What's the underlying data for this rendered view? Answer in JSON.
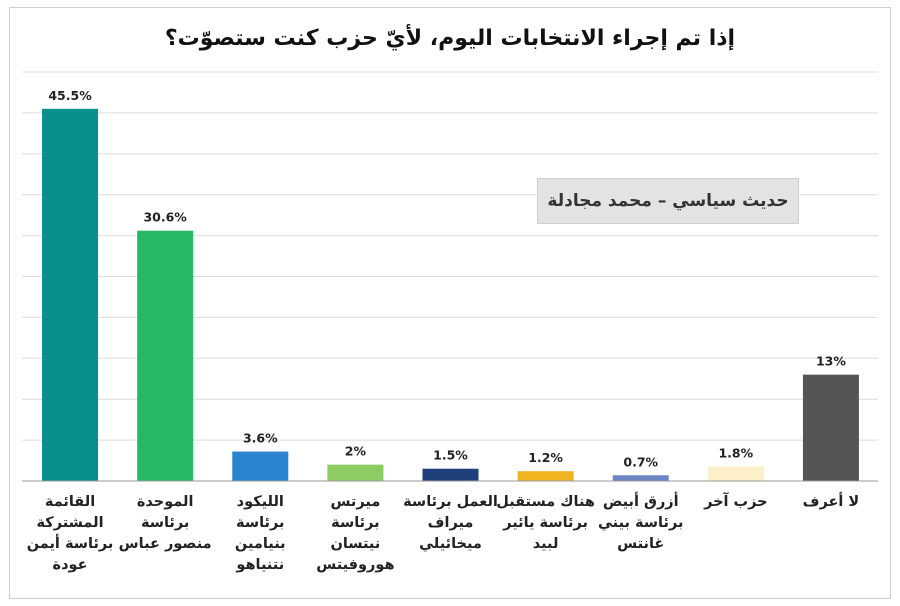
{
  "chart_data": {
    "type": "bar",
    "title": "إذا تم إجراء الانتخابات اليوم، لأيّ حزب كنت ستصوّت؟",
    "annotation": "حديث سياسي – محمد مجادلة",
    "categories": [
      "القائمة المشتركة برئاسة أيمن عودة",
      "الموحدة برئاسة منصور عباس",
      "الليكود برئاسة بنيامين نتنياهو",
      "ميرتس برئاسة نيتسان هوروفيتس",
      "العمل برئاسة ميراف ميخائيلي",
      "هناك مستقبل برئاسة يائير لبيد",
      "أزرق أبيض برئاسة بيني غانتس",
      "حزب آخر",
      "لا أعرف"
    ],
    "category_lines": [
      [
        "القائمة",
        "المشتركة",
        "برئاسة أيمن",
        "عودة"
      ],
      [
        "الموحدة",
        "برئاسة",
        "منصور عباس"
      ],
      [
        "الليكود",
        "برئاسة",
        "بنيامين",
        "نتنياهو"
      ],
      [
        "ميرتس",
        "برئاسة",
        "نيتسان",
        "هوروفيتس"
      ],
      [
        "العمل برئاسة",
        "ميراف",
        "ميخائيلي"
      ],
      [
        "هناك مستقبل",
        "برئاسة يائير",
        "لبيد"
      ],
      [
        "أزرق أبيض",
        "برئاسة بيني",
        "غانتس"
      ],
      [
        "حزب آخر"
      ],
      [
        "لا أعرف"
      ]
    ],
    "values": [
      45.5,
      30.6,
      3.6,
      2,
      1.5,
      1.2,
      0.7,
      1.8,
      13
    ],
    "value_labels": [
      "45.5%",
      "30.6%",
      "3.6%",
      "2%",
      "1.5%",
      "1.2%",
      "0.7%",
      "1.8%",
      "13%"
    ],
    "colors": [
      "#0a8f8f",
      "#26b864",
      "#2a84cf",
      "#8ccc62",
      "#1f3f7a",
      "#f0b421",
      "#6f84c4",
      "#fcefc9",
      "#555555"
    ],
    "ylim": [
      0,
      50
    ],
    "grid": true,
    "xlabel": "",
    "ylabel": ""
  }
}
